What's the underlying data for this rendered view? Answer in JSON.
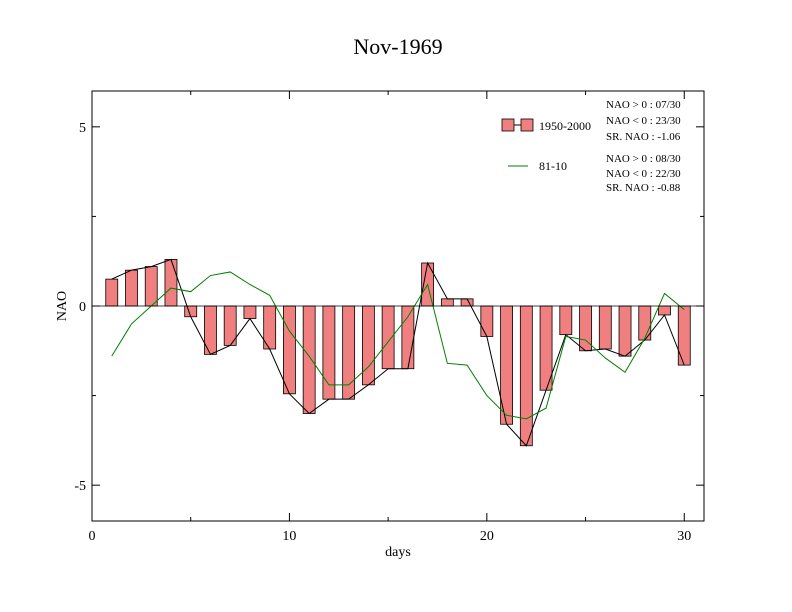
{
  "chart_data": {
    "type": "bar",
    "title": "Nov-1969",
    "xlabel": "days",
    "ylabel": "NAO",
    "xlim": [
      0,
      31
    ],
    "ylim": [
      -6,
      6
    ],
    "xticks": [
      0,
      10,
      20,
      30
    ],
    "xtick_labels": [
      "0",
      "10",
      "20",
      "30"
    ],
    "yticks": [
      -5,
      0,
      5
    ],
    "ytick_labels": [
      "-5",
      "0",
      "5"
    ],
    "grid": false,
    "legend_position": "top-right",
    "series": [
      {
        "name": "1950-2000",
        "type": "bar",
        "color": "#f08080",
        "x": [
          1,
          2,
          3,
          4,
          5,
          6,
          7,
          8,
          9,
          10,
          11,
          12,
          13,
          14,
          15,
          16,
          17,
          18,
          19,
          20,
          21,
          22,
          23,
          24,
          25,
          26,
          27,
          28,
          29,
          30
        ],
        "values": [
          0.75,
          1.0,
          1.1,
          1.3,
          -0.3,
          -1.35,
          -1.1,
          -0.35,
          -1.2,
          -2.45,
          -3.0,
          -2.6,
          -2.6,
          -2.2,
          -1.75,
          -1.75,
          1.2,
          0.2,
          0.2,
          -0.85,
          -3.3,
          -3.9,
          -2.35,
          -0.8,
          -1.25,
          -1.2,
          -1.4,
          -0.95,
          -0.25,
          -1.65
        ],
        "stats": [
          "NAO > 0 : 07/30",
          "NAO < 0 : 23/30",
          "SR. NAO : -1.06"
        ]
      },
      {
        "name": "81-10",
        "type": "line",
        "color": "#008000",
        "x": [
          1,
          2,
          3,
          4,
          5,
          6,
          7,
          8,
          9,
          10,
          11,
          12,
          13,
          14,
          15,
          16,
          17,
          18,
          19,
          20,
          21,
          22,
          23,
          24,
          25,
          26,
          27,
          28,
          29,
          30
        ],
        "values": [
          -1.4,
          -0.5,
          0.0,
          0.5,
          0.4,
          0.85,
          0.95,
          0.6,
          0.3,
          -0.7,
          -1.4,
          -2.2,
          -2.2,
          -1.7,
          -1.0,
          -0.3,
          0.6,
          -1.6,
          -1.65,
          -2.5,
          -3.05,
          -3.15,
          -2.85,
          -0.85,
          -0.95,
          -1.45,
          -1.85,
          -0.9,
          0.35,
          -0.1
        ],
        "stats": [
          "NAO > 0 : 08/30",
          "NAO < 0 : 22/30",
          "SR. NAO : -0.88"
        ]
      }
    ]
  }
}
